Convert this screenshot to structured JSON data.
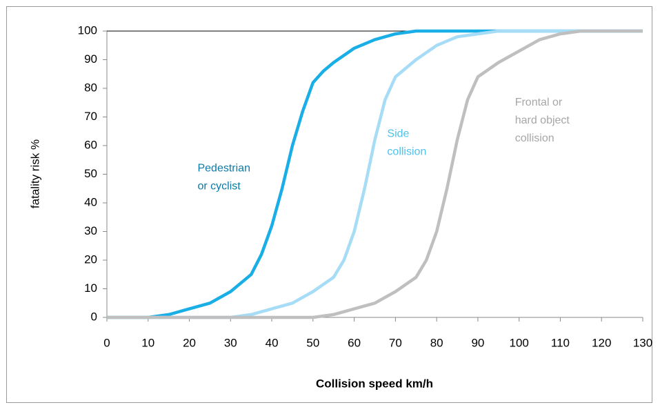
{
  "chart_data": {
    "type": "line",
    "xlabel": "Collision speed km/h",
    "ylabel": "fatality risk %",
    "xlim": [
      0,
      130
    ],
    "xticks": [
      0,
      10,
      20,
      30,
      40,
      50,
      60,
      70,
      80,
      90,
      100,
      110,
      120,
      130
    ],
    "ylim": [
      0,
      100
    ],
    "yticks": [
      0,
      10,
      20,
      30,
      40,
      50,
      60,
      70,
      80,
      90,
      100
    ],
    "series": [
      {
        "label_lines": [
          "Pedestrian",
          "or cyclist"
        ],
        "color": "#1aaee6",
        "label_color": "#0a7aa8",
        "label_at": [
          22,
          52
        ],
        "x": [
          0,
          5,
          10,
          15,
          20,
          25,
          30,
          35,
          37.5,
          40,
          42.5,
          45,
          47.5,
          50,
          52.5,
          55,
          60,
          65,
          70,
          75,
          80,
          90,
          100,
          110,
          120,
          130
        ],
        "values": [
          0,
          0,
          0,
          1,
          3,
          5,
          9,
          15,
          22,
          32,
          45,
          60,
          72,
          82,
          86,
          89,
          94,
          97,
          99,
          100,
          100,
          100,
          100,
          100,
          100,
          100
        ]
      },
      {
        "label_lines": [
          "Side",
          "collision"
        ],
        "color": "#a6dcf5",
        "label_color": "#4cc2ee",
        "label_at": [
          68,
          64
        ],
        "x": [
          0,
          10,
          20,
          30,
          35,
          40,
          45,
          50,
          55,
          57.5,
          60,
          62.5,
          65,
          67.5,
          70,
          75,
          80,
          85,
          90,
          95,
          100,
          110,
          120,
          130
        ],
        "values": [
          0,
          0,
          0,
          0,
          1,
          3,
          5,
          9,
          14,
          20,
          30,
          45,
          62,
          76,
          84,
          90,
          95,
          98,
          99,
          100,
          100,
          100,
          100,
          100
        ]
      },
      {
        "label_lines": [
          "Frontal or",
          "hard object",
          "collision"
        ],
        "color": "#bfbfbf",
        "label_color": "#a6a6a6",
        "label_at": [
          99,
          75
        ],
        "x": [
          0,
          10,
          20,
          30,
          40,
          50,
          55,
          60,
          65,
          70,
          75,
          77.5,
          80,
          82.5,
          85,
          87.5,
          90,
          95,
          100,
          105,
          110,
          115,
          120,
          130
        ],
        "values": [
          0,
          0,
          0,
          0,
          0,
          0,
          1,
          3,
          5,
          9,
          14,
          20,
          30,
          45,
          62,
          76,
          84,
          89,
          93,
          97,
          99,
          100,
          100,
          100
        ]
      }
    ]
  }
}
